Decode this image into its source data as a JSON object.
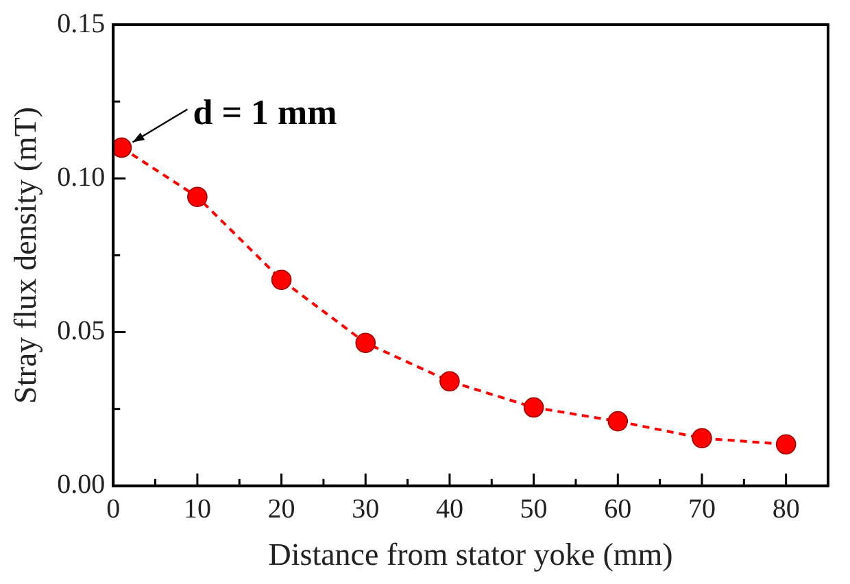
{
  "chart_data": {
    "type": "line",
    "xlabel": "Distance from stator yoke (mm)",
    "ylabel": "Stray flux density (mT)",
    "x": [
      1,
      10,
      20,
      30,
      40,
      50,
      60,
      70,
      80
    ],
    "series": [
      {
        "color": "#ff0000",
        "values": [
          0.11,
          0.094,
          0.067,
          0.0465,
          0.034,
          0.0255,
          0.021,
          0.0155,
          0.0135
        ]
      }
    ],
    "xlim": [
      0,
      85
    ],
    "xticks": [
      0,
      {
        "value": 5,
        "label": null
      },
      10,
      {
        "value": 15,
        "label": null
      },
      20,
      {
        "value": 25,
        "label": null
      },
      30,
      {
        "value": 35,
        "label": null
      },
      40,
      {
        "value": 45,
        "label": null
      },
      50,
      {
        "value": 55,
        "label": null
      },
      60,
      {
        "value": 65,
        "label": null
      },
      70,
      {
        "value": 75,
        "label": null
      },
      80
    ],
    "ylim": [
      0,
      0.15
    ],
    "yticks": [
      {
        "value": 0,
        "label": "0.00"
      },
      {
        "value": 0.025,
        "label": null
      },
      {
        "value": 0.05,
        "label": "0.05"
      },
      {
        "value": 0.075,
        "label": null
      },
      {
        "value": 0.1,
        "label": "0.10"
      },
      {
        "value": 0.125,
        "label": null
      },
      {
        "value": 0.15,
        "label": "0.15"
      }
    ],
    "marker": "circle",
    "line_style": "dashed",
    "grid": false,
    "legend": false,
    "annotations": [
      {
        "text": "d = 1 mm",
        "x": 1,
        "y": 0.11
      }
    ]
  }
}
